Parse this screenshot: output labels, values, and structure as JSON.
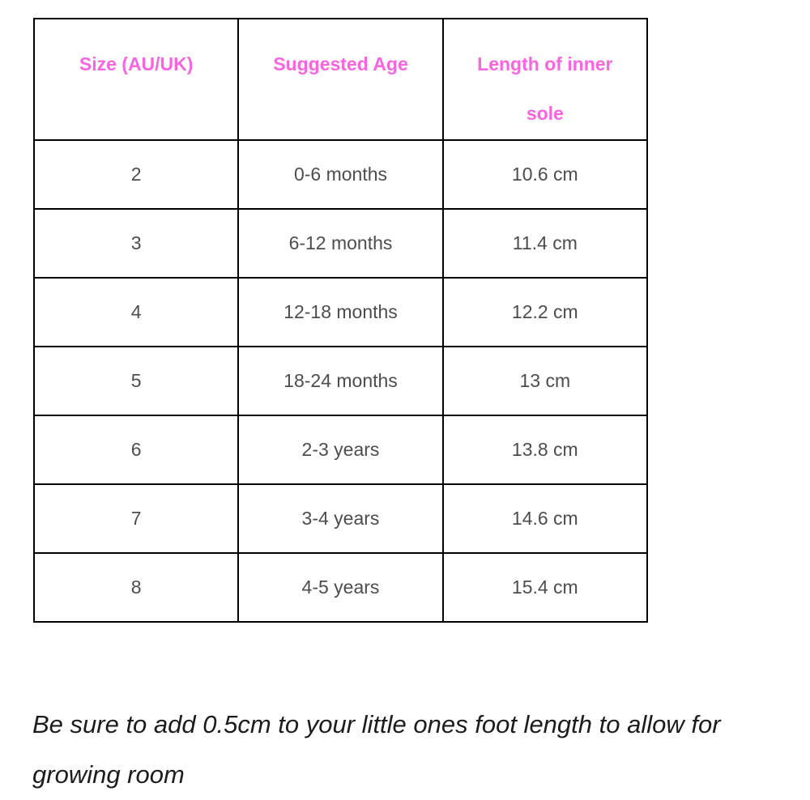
{
  "table": {
    "headers": [
      "Size (AU/UK)",
      "Suggested Age",
      "Length of inner sole"
    ],
    "rows": [
      [
        "2",
        "0-6 months",
        "10.6 cm"
      ],
      [
        "3",
        "6-12 months",
        "11.4 cm"
      ],
      [
        "4",
        "12-18 months",
        "12.2 cm"
      ],
      [
        "5",
        "18-24 months",
        "13 cm"
      ],
      [
        "6",
        "2-3 years",
        "13.8 cm"
      ],
      [
        "7",
        "3-4 years",
        "14.6 cm"
      ],
      [
        "8",
        "4-5 years",
        "15.4 cm"
      ]
    ]
  },
  "note": "Be sure to add 0.5cm to your little ones foot length to allow for growing room",
  "colors": {
    "header_text": "#f964e0",
    "body_text": "#4d4d4d",
    "note_text": "#1c1c1c",
    "border": "#000000",
    "background": "#ffffff"
  }
}
